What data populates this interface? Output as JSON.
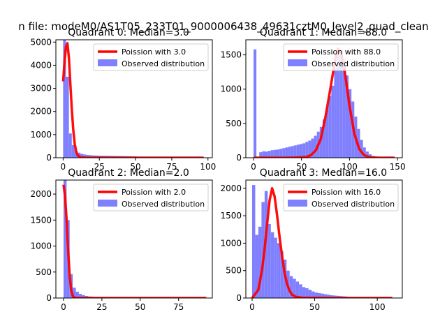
{
  "suptitle": "n file: modeM0/AS1T05_233T01_9000006438_49631cztM0_level2_quad_clean",
  "colors": {
    "hist": "#8080ff",
    "curve": "#ff0000"
  },
  "chart_data": [
    {
      "type": "bar",
      "title": "Quadrant 0: Median=3.0",
      "median": 3.0,
      "xlim": [
        -5,
        103
      ],
      "ylim": [
        0,
        5100
      ],
      "xticks": [
        0,
        25,
        50,
        75,
        100
      ],
      "yticks": [
        0,
        1000,
        2000,
        3000,
        4000,
        5000
      ],
      "bin_width": 2,
      "hist_start": 0,
      "hist_values": [
        5100,
        3500,
        1050,
        550,
        300,
        220,
        170,
        140,
        120,
        110,
        100,
        95,
        90,
        88,
        85,
        84,
        82,
        80,
        78,
        75,
        72,
        70,
        66,
        62,
        58,
        52,
        45,
        40,
        35,
        28,
        22,
        18,
        14,
        10,
        8,
        6,
        5,
        4,
        3,
        2,
        2,
        1,
        1,
        1,
        0,
        0,
        0,
        0,
        0
      ],
      "curve_x": [
        0,
        1,
        2,
        3,
        4,
        5,
        6,
        7,
        8,
        9,
        10,
        12,
        15,
        20,
        30,
        50,
        75,
        97
      ],
      "curve_y": [
        3300,
        4150,
        4800,
        4950,
        4300,
        3200,
        2100,
        1200,
        600,
        280,
        110,
        20,
        2,
        0,
        0,
        0,
        0,
        0
      ],
      "legend": [
        "Poission with 3.0",
        "Observed distribution"
      ]
    },
    {
      "type": "bar",
      "title": "Quadrant 1: Median=88.0",
      "median": 88.0,
      "xlim": [
        -8,
        155
      ],
      "ylim": [
        0,
        1720
      ],
      "xticks": [
        0,
        50,
        100,
        150
      ],
      "yticks": [
        0,
        500,
        1000,
        1500
      ],
      "bin_width": 3,
      "hist_start": 0,
      "hist_values": [
        1580,
        0,
        80,
        95,
        90,
        100,
        110,
        115,
        120,
        130,
        140,
        150,
        160,
        170,
        180,
        190,
        200,
        210,
        230,
        250,
        280,
        320,
        380,
        450,
        560,
        720,
        900,
        1050,
        1300,
        1500,
        1560,
        1440,
        1200,
        1000,
        820,
        600,
        420,
        260,
        150,
        90,
        50,
        25,
        12,
        6,
        3,
        1,
        0,
        0,
        0
      ],
      "curve_x": [
        0,
        40,
        55,
        60,
        65,
        70,
        75,
        80,
        85,
        88,
        91,
        95,
        100,
        105,
        110,
        115,
        120,
        130,
        147
      ],
      "curve_y": [
        0,
        0,
        10,
        40,
        110,
        270,
        600,
        1000,
        1420,
        1590,
        1550,
        1260,
        760,
        350,
        130,
        40,
        10,
        0,
        0
      ],
      "legend": [
        "Poission with 88.0",
        "Observed distribution"
      ]
    },
    {
      "type": "bar",
      "title": "Quadrant 2: Median=2.0",
      "median": 2.0,
      "xlim": [
        -5,
        97
      ],
      "ylim": [
        0,
        2270
      ],
      "xticks": [
        0,
        25,
        50,
        75
      ],
      "yticks": [
        0,
        500,
        1000,
        1500,
        2000
      ],
      "bin_width": 2,
      "hist_start": 0,
      "hist_values": [
        2270,
        1500,
        460,
        200,
        120,
        80,
        55,
        40,
        30,
        25,
        20,
        18,
        16,
        14,
        12,
        10,
        9,
        8,
        7,
        6,
        5,
        5,
        4,
        4,
        3,
        3,
        3,
        2,
        2,
        2,
        2,
        1,
        1,
        1,
        1,
        1,
        1,
        0,
        0,
        0,
        0,
        0,
        0,
        0,
        0,
        0,
        0
      ],
      "curve_x": [
        0,
        1,
        2,
        3,
        4,
        5,
        6,
        7,
        8,
        10,
        15,
        25,
        50,
        75,
        93
      ],
      "curve_y": [
        2180,
        1950,
        1500,
        900,
        420,
        150,
        40,
        10,
        2,
        0,
        0,
        0,
        0,
        0,
        0
      ],
      "legend": [
        "Poission with 2.0",
        "Observed distribution"
      ]
    },
    {
      "type": "bar",
      "title": "Quadrant 3: Median=16.0",
      "median": 16.0,
      "xlim": [
        -5,
        120
      ],
      "ylim": [
        0,
        2150
      ],
      "xticks": [
        0,
        50,
        100
      ],
      "yticks": [
        0,
        500,
        1000,
        1500,
        2000
      ],
      "bin_width": 2.5,
      "hist_start": 0,
      "hist_values": [
        2060,
        1150,
        1300,
        1750,
        1950,
        1350,
        1200,
        1100,
        1000,
        850,
        700,
        500,
        400,
        350,
        300,
        250,
        200,
        180,
        150,
        120,
        100,
        90,
        80,
        70,
        60,
        50,
        45,
        40,
        35,
        30,
        25,
        20,
        15,
        12,
        10,
        8,
        6,
        5,
        4,
        3,
        2,
        2,
        1,
        1,
        1,
        0
      ],
      "curve_x": [
        0,
        5,
        8,
        10,
        12,
        14,
        16,
        18,
        20,
        22,
        24,
        26,
        28,
        30,
        32,
        35,
        40,
        60,
        112
      ],
      "curve_y": [
        0,
        150,
        520,
        900,
        1350,
        1780,
        2000,
        1850,
        1500,
        1100,
        750,
        450,
        250,
        130,
        60,
        20,
        5,
        0,
        0
      ],
      "legend": [
        "Poission with 16.0",
        "Observed distribution"
      ]
    }
  ]
}
